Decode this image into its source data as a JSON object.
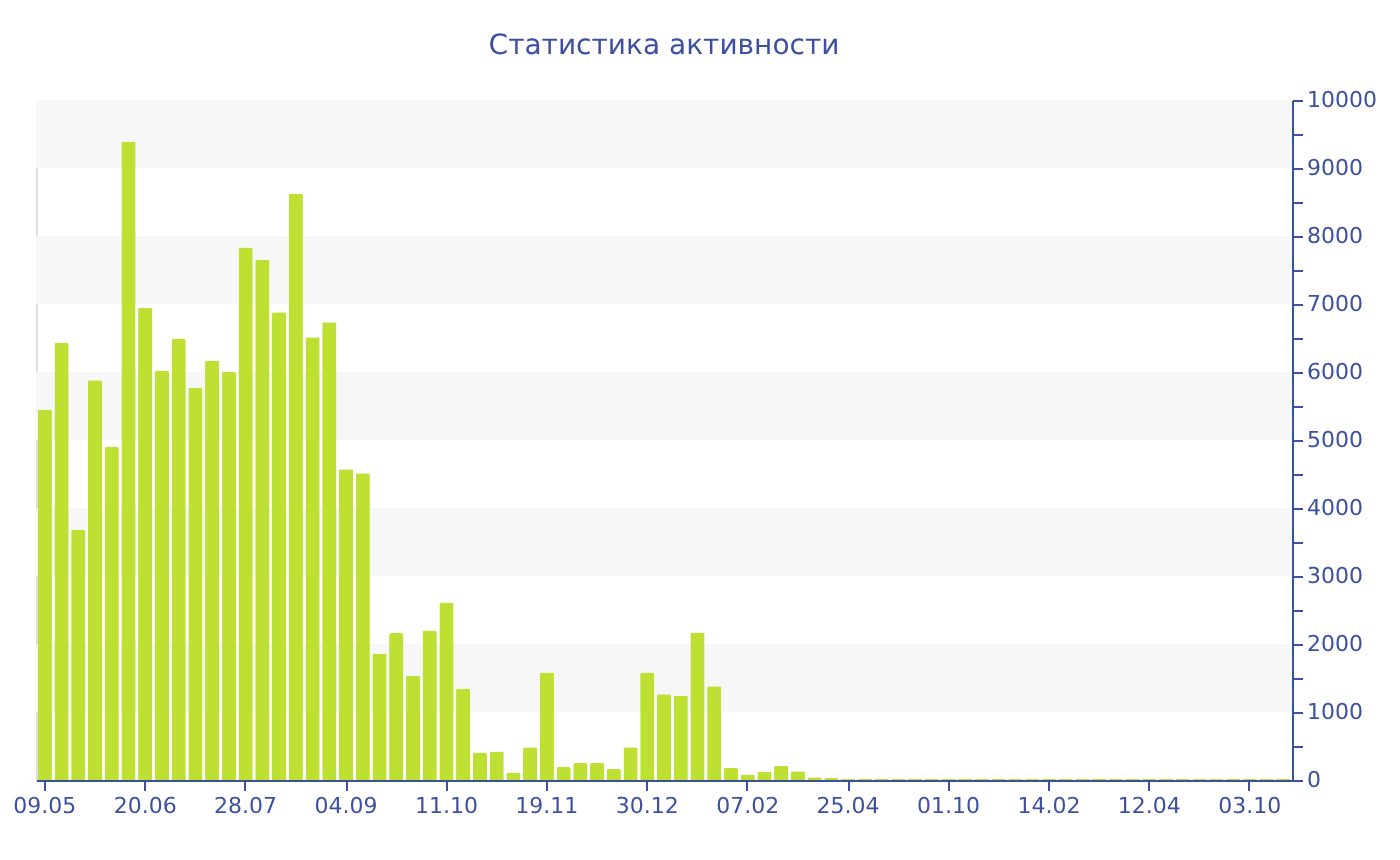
{
  "chart_data": {
    "type": "bar",
    "title": "Статистика активности",
    "categories": [
      "09.05",
      null,
      null,
      null,
      null,
      null,
      "20.06",
      null,
      null,
      null,
      null,
      null,
      "28.07",
      null,
      null,
      null,
      null,
      null,
      "04.09",
      null,
      null,
      null,
      null,
      null,
      "11.10",
      null,
      null,
      null,
      null,
      null,
      "19.11",
      null,
      null,
      null,
      null,
      null,
      "30.12",
      null,
      null,
      null,
      null,
      null,
      "07.02",
      null,
      null,
      null,
      null,
      null,
      "25.04",
      null,
      null,
      null,
      null,
      null,
      "01.10",
      null,
      null,
      null,
      null,
      null,
      "14.02",
      null,
      null,
      null,
      null,
      null,
      "12.04",
      null,
      null,
      null,
      null,
      null,
      "03.10",
      null,
      null
    ],
    "values": [
      5450,
      6430,
      3680,
      5880,
      4900,
      9390,
      6940,
      6020,
      6490,
      5770,
      6170,
      6000,
      7830,
      7650,
      6880,
      8620,
      6510,
      6730,
      4570,
      4510,
      1860,
      2160,
      1530,
      2200,
      2610,
      1340,
      400,
      420,
      110,
      480,
      1580,
      190,
      250,
      250,
      160,
      480,
      1580,
      1260,
      1240,
      2170,
      1380,
      180,
      80,
      120,
      210,
      130,
      40,
      30,
      20,
      20,
      20,
      20,
      20,
      20,
      20,
      20,
      20,
      20,
      20,
      20,
      20,
      20,
      20,
      20,
      20,
      20,
      20,
      20,
      20,
      20,
      20,
      20,
      20,
      20,
      20
    ],
    "color": "#bde032",
    "ylim": [
      0,
      10000
    ],
    "yticks": [
      0,
      {
        "value": 500,
        "label": null
      },
      1000,
      {
        "value": 1500,
        "label": null
      },
      2000,
      {
        "value": 2500,
        "label": null
      },
      3000,
      {
        "value": 3500,
        "label": null
      },
      4000,
      {
        "value": 4500,
        "label": null
      },
      5000,
      {
        "value": 5500,
        "label": null
      },
      6000,
      {
        "value": 6500,
        "label": null
      },
      7000,
      {
        "value": 7500,
        "label": null
      },
      8000,
      {
        "value": 8500,
        "label": null
      },
      9000,
      {
        "value": 9500,
        "label": null
      },
      10000
    ],
    "bands": [
      {
        "axis": "y",
        "from": 1000,
        "to": 2000,
        "color": "#f7f7f7"
      },
      {
        "axis": "y",
        "from": 3000,
        "to": 4000,
        "color": "#f7f7f7"
      },
      {
        "axis": "y",
        "from": 5000,
        "to": 6000,
        "color": "#f7f7f7"
      },
      {
        "axis": "y",
        "from": 7000,
        "to": 8000,
        "color": "#f7f7f7"
      },
      {
        "axis": "y",
        "from": 9000,
        "to": 10000,
        "color": "#f7f7f7"
      }
    ],
    "grid": false
  }
}
